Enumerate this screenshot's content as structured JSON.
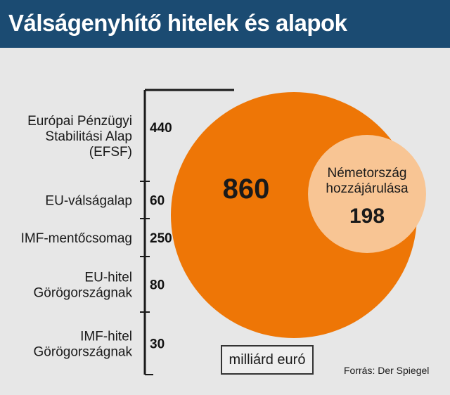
{
  "header": {
    "title": "Válságenyhítő hitelek és alapok"
  },
  "chart_data": {
    "type": "bar",
    "title": "Válságenyhítő hitelek és alapok",
    "unit": "milliárd euró",
    "source": "Forrás: Der Spiegel",
    "categories": [
      [
        "Európai Pénzügyi",
        "Stabilitási Alap",
        "(EFSF)"
      ],
      [
        "EU-válságalap"
      ],
      [
        "IMF-mentőcsomag"
      ],
      [
        "EU-hitel",
        "Görögországnak"
      ],
      [
        "IMF-hitel",
        "Görögországnak"
      ]
    ],
    "values": [
      440,
      60,
      250,
      80,
      30
    ],
    "total": {
      "value": 860
    },
    "subset": {
      "label": [
        "Németország",
        "hozzájárulása"
      ],
      "value": 198
    },
    "colors": {
      "header": "#1b4b72",
      "total_circle": "#ee7606",
      "subset_circle": "#f8c594",
      "background": "#e7e7e7"
    }
  }
}
